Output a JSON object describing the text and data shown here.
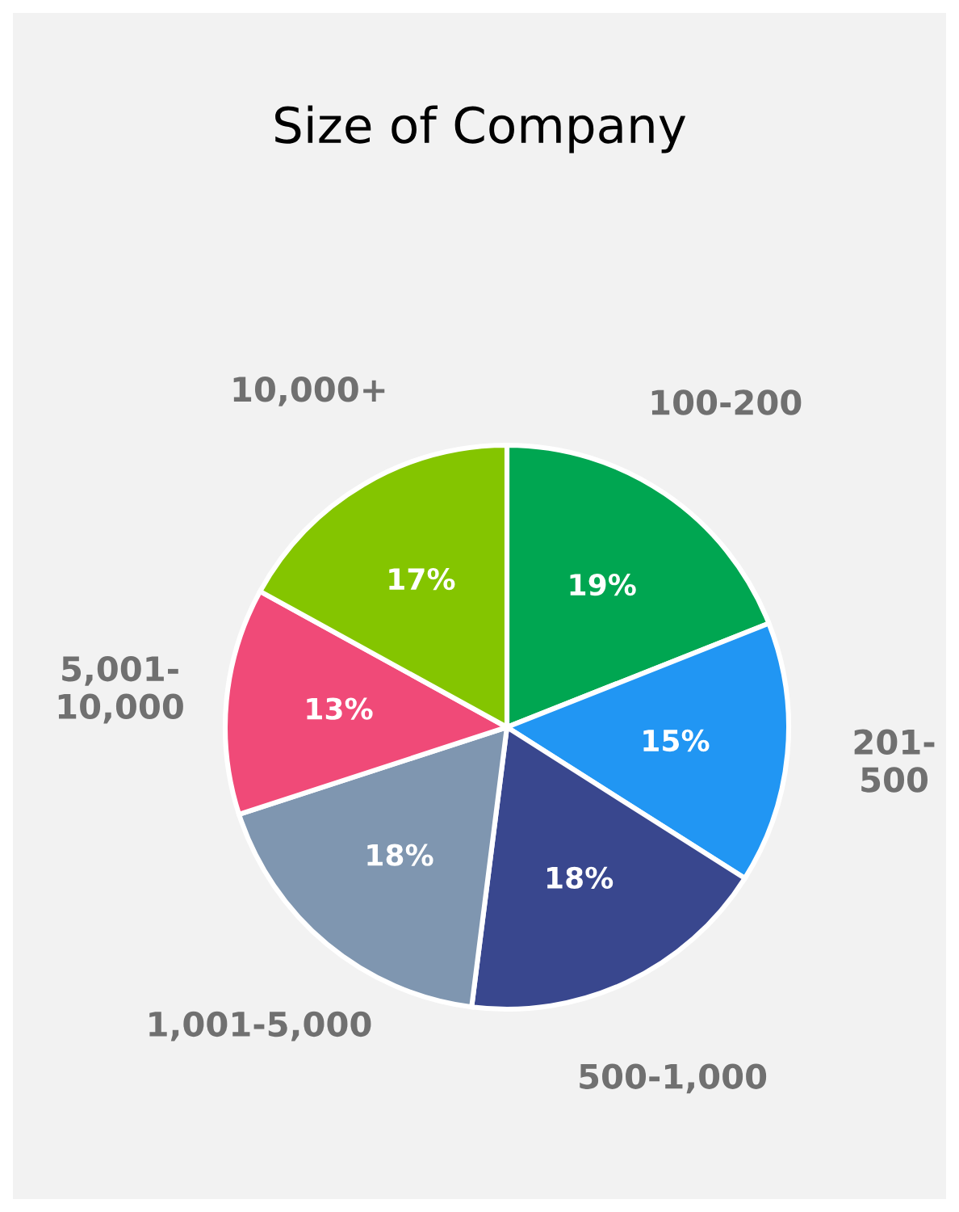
{
  "chart_data": {
    "type": "pie",
    "title": "Size of Company",
    "categories": [
      "100-200",
      "201-\n500",
      "500-1,000",
      "1,001-5,000",
      "5,001-\n10,000",
      "10,000+"
    ],
    "values": [
      19,
      15,
      18,
      18,
      13,
      17
    ],
    "colors": [
      "#00a651",
      "#2196f3",
      "#39478e",
      "#7f96b0",
      "#f04a78",
      "#84c500"
    ],
    "value_labels": [
      "19%",
      "15%",
      "18%",
      "18%",
      "13%",
      "17%"
    ]
  }
}
